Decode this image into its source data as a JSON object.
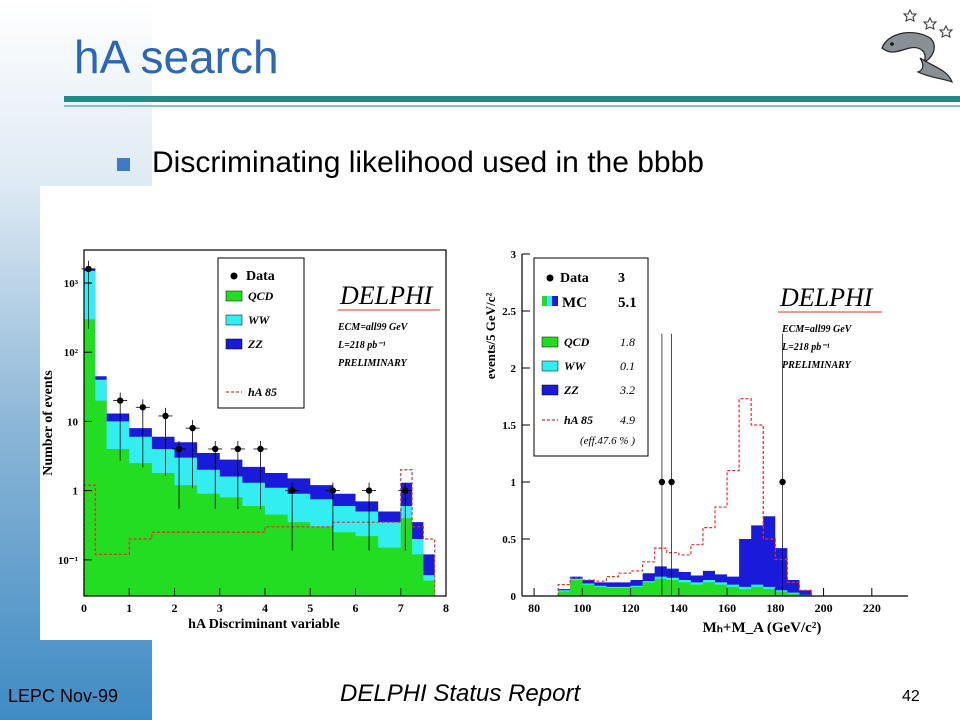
{
  "slide": {
    "title": "hA search",
    "bullet": "Discriminating likelihood used in the bbbb",
    "footer_left": "LEPC Nov-99",
    "footer_center": "DELPHI Status Report",
    "page_number": "42"
  },
  "colors": {
    "qcd": "#22dd22",
    "ww": "#33eef0",
    "zz": "#1a1adb",
    "signal": "#e03030",
    "title": "#2b67b8",
    "rule": "#1f8c8a"
  },
  "chart_data": [
    {
      "type": "histogram",
      "log_y": true,
      "xlabel": "hA Discriminant variable",
      "ylabel": "Number of events",
      "xlim": [
        0,
        8
      ],
      "ylim": [
        0.03,
        3000
      ],
      "x_ticks": [
        "0",
        "1",
        "2",
        "3",
        "4",
        "5",
        "6",
        "7",
        "8"
      ],
      "y_ticks": [
        "10⁻¹",
        "1",
        "10",
        "10²",
        "10³"
      ],
      "bin_edges": [
        0,
        0.25,
        0.5,
        1.0,
        1.5,
        2.0,
        2.5,
        3.0,
        3.5,
        4.0,
        4.5,
        5.0,
        5.5,
        6.0,
        6.5,
        7.0,
        7.25,
        7.5,
        7.75
      ],
      "qcd": [
        300,
        20,
        4,
        2.5,
        1.8,
        1.2,
        0.9,
        0.8,
        0.6,
        0.45,
        0.35,
        0.3,
        0.25,
        0.22,
        0.15,
        0.4,
        0.12,
        0.05
      ],
      "ww_cumulative": [
        1500,
        40,
        10,
        6,
        4,
        3,
        2,
        1.6,
        1.3,
        1.1,
        0.9,
        0.75,
        0.6,
        0.5,
        0.35,
        0.6,
        0.2,
        0.06
      ],
      "zz_cumulative": [
        1600,
        45,
        13,
        8,
        6,
        5,
        3.5,
        2.8,
        2.2,
        1.8,
        1.5,
        1.2,
        0.9,
        0.7,
        0.5,
        1.3,
        0.35,
        0.12
      ],
      "signal_ha85": [
        1.2,
        0.12,
        0.12,
        0.2,
        0.25,
        0.25,
        0.25,
        0.25,
        0.25,
        0.3,
        0.3,
        0.3,
        0.35,
        0.35,
        0.35,
        2.0,
        0.3,
        0.2
      ],
      "data_points": [
        {
          "x": 0.1,
          "y": 1600
        },
        {
          "x": 0.8,
          "y": 20
        },
        {
          "x": 1.3,
          "y": 16
        },
        {
          "x": 1.8,
          "y": 12
        },
        {
          "x": 2.1,
          "y": 4
        },
        {
          "x": 2.4,
          "y": 8
        },
        {
          "x": 2.9,
          "y": 4
        },
        {
          "x": 3.4,
          "y": 4
        },
        {
          "x": 3.9,
          "y": 4
        },
        {
          "x": 4.6,
          "y": 1
        },
        {
          "x": 5.5,
          "y": 1
        },
        {
          "x": 6.3,
          "y": 1
        },
        {
          "x": 7.1,
          "y": 1
        }
      ],
      "legend": {
        "entries": [
          {
            "label": "Data",
            "kind": "marker"
          },
          {
            "label": "QCD",
            "kind": "box",
            "color": "#22dd22"
          },
          {
            "label": "WW",
            "kind": "box",
            "color": "#33eef0"
          },
          {
            "label": "ZZ",
            "kind": "box",
            "color": "#1a1adb"
          },
          {
            "label": "hA 85",
            "kind": "dashed",
            "color": "#e03030"
          }
        ]
      },
      "annotation": {
        "experiment": "DELPHI",
        "line1": "ECM=all99 GeV",
        "line2": "L=218 pb⁻¹",
        "line3": "PRELIMINARY"
      }
    },
    {
      "type": "histogram",
      "log_y": false,
      "xlabel": "Mₕ+M_A (GeV/c²)",
      "ylabel": "events/5 GeV/c²",
      "xlim": [
        75,
        235
      ],
      "ylim": [
        0,
        3
      ],
      "x_ticks": [
        "80",
        "100",
        "120",
        "140",
        "160",
        "180",
        "200",
        "220"
      ],
      "y_ticks": [
        "0",
        "0.5",
        "1",
        "1.5",
        "2",
        "2.5",
        "3"
      ],
      "bin_edges": [
        90,
        95,
        100,
        105,
        110,
        115,
        120,
        125,
        130,
        135,
        140,
        145,
        150,
        155,
        160,
        165,
        170,
        175,
        180,
        185,
        190,
        195
      ],
      "qcd": [
        0.04,
        0.14,
        0.1,
        0.08,
        0.07,
        0.07,
        0.08,
        0.12,
        0.15,
        0.14,
        0.12,
        0.1,
        0.12,
        0.1,
        0.08,
        0.06,
        0.08,
        0.06,
        0.04,
        0.02,
        0.01
      ],
      "ww_cumulative": [
        0.05,
        0.15,
        0.11,
        0.09,
        0.08,
        0.08,
        0.09,
        0.13,
        0.17,
        0.16,
        0.14,
        0.12,
        0.14,
        0.12,
        0.1,
        0.08,
        0.1,
        0.08,
        0.05,
        0.03,
        0.01
      ],
      "zz_cumulative": [
        0.06,
        0.17,
        0.14,
        0.12,
        0.12,
        0.12,
        0.14,
        0.2,
        0.26,
        0.24,
        0.21,
        0.18,
        0.22,
        0.19,
        0.17,
        0.5,
        0.62,
        0.7,
        0.42,
        0.14,
        0.05
      ],
      "signal_ha85": [
        0.1,
        0.16,
        0.14,
        0.13,
        0.17,
        0.2,
        0.22,
        0.3,
        0.42,
        0.38,
        0.36,
        0.45,
        0.6,
        0.78,
        1.1,
        1.73,
        1.5,
        0.5,
        0.32,
        0.12,
        0.05
      ],
      "data_points": [
        {
          "x": 133,
          "y": 1
        },
        {
          "x": 137,
          "y": 1
        },
        {
          "x": 183,
          "y": 1
        }
      ],
      "legend": {
        "entries": [
          {
            "label": "Data",
            "value": "3",
            "kind": "marker"
          },
          {
            "label": "MC",
            "value": "5.1",
            "kind": "stack"
          },
          {
            "label": "QCD",
            "value": "1.8",
            "kind": "box",
            "color": "#22dd22"
          },
          {
            "label": "WW",
            "value": "0.1",
            "kind": "box",
            "color": "#33eef0"
          },
          {
            "label": "ZZ",
            "value": "3.2",
            "kind": "box",
            "color": "#1a1adb"
          },
          {
            "label": "hA 85",
            "value": "4.9",
            "kind": "dashed",
            "color": "#e03030"
          }
        ],
        "note": "(eff.47.6 % )"
      },
      "annotation": {
        "experiment": "DELPHI",
        "line1": "ECM=all99 GeV",
        "line2": "L=218 pb⁻¹",
        "line3": "PRELIMINARY"
      }
    }
  ]
}
